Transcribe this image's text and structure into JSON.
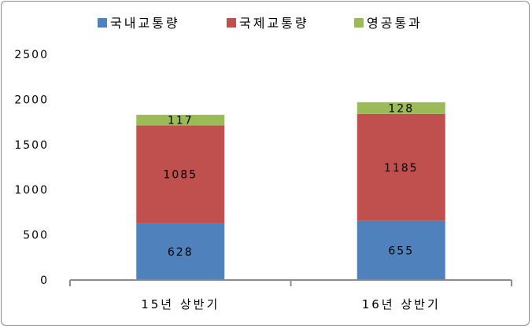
{
  "chart_data": {
    "type": "bar",
    "stacked": true,
    "categories": [
      "15년 상반기",
      "16년 상반기"
    ],
    "series": [
      {
        "name": "국내교통량",
        "values": [
          628,
          655
        ],
        "color": "#4f81bd"
      },
      {
        "name": "국제교통량",
        "values": [
          1085,
          1185
        ],
        "color": "#c0504d"
      },
      {
        "name": "영공통과",
        "values": [
          117,
          128
        ],
        "color": "#9bbb59"
      }
    ],
    "yticks": [
      "0",
      "500",
      "1000",
      "1500",
      "2000",
      "2500"
    ],
    "ylim": [
      0,
      2500
    ],
    "grid": false,
    "legend": "top",
    "title": "",
    "xlabel": "",
    "ylabel": ""
  }
}
